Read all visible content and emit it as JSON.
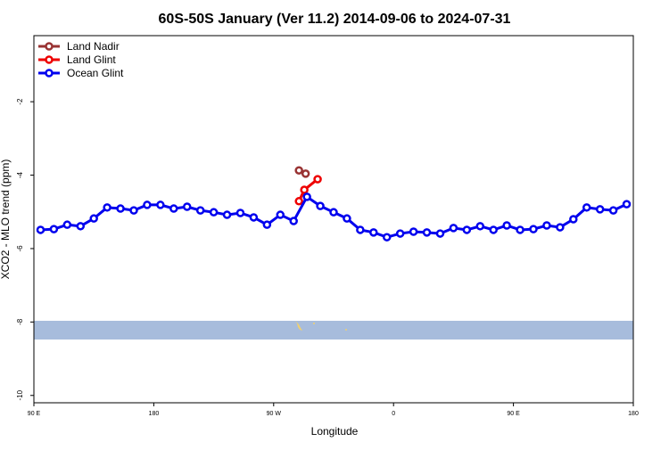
{
  "chart_data": {
    "type": "line",
    "title": "60S-50S January (Ver 11.2)   2014-09-06 to 2024-07-31",
    "x_label": "Longitude",
    "y_label": "XCO2 - MLO trend (ppm)",
    "xlim": [
      90,
      540
    ],
    "ylim": [
      -10.2,
      -0.2
    ],
    "xticks": [
      {
        "value": 90,
        "label": "90 E"
      },
      180,
      {
        "value": 270,
        "label": "90 W"
      },
      {
        "value": 360,
        "label": "0"
      },
      {
        "value": 450,
        "label": "90 E"
      },
      {
        "value": 540,
        "label": "180"
      }
    ],
    "yticks": [
      -10,
      -8,
      -6,
      -4,
      -2
    ],
    "legend": "top-left",
    "series": [
      {
        "name": "Land Nadir",
        "color": "#993333",
        "x": [
          289,
          294
        ],
        "values": [
          -3.87,
          -3.96
        ]
      },
      {
        "name": "Land Glint",
        "color": "#ee0000",
        "x": [
          289,
          293,
          303
        ],
        "values": [
          -4.71,
          -4.4,
          -4.11
        ]
      },
      {
        "name": "Ocean Glint",
        "color": "#0000ee",
        "x": [
          95,
          105,
          115,
          125,
          135,
          145,
          155,
          165,
          175,
          185,
          195,
          205,
          215,
          225,
          235,
          245,
          255,
          265,
          275,
          285,
          295,
          305,
          315,
          325,
          335,
          345,
          355,
          365,
          375,
          385,
          395,
          405,
          415,
          425,
          435,
          445,
          455,
          465,
          475,
          485,
          495,
          505,
          515,
          525,
          535
        ],
        "values": [
          -5.49,
          -5.47,
          -5.35,
          -5.39,
          -5.18,
          -4.88,
          -4.91,
          -4.96,
          -4.81,
          -4.81,
          -4.91,
          -4.86,
          -4.96,
          -5.01,
          -5.08,
          -5.03,
          -5.15,
          -5.35,
          -5.08,
          -5.25,
          -4.59,
          -4.84,
          -5.01,
          -5.18,
          -5.49,
          -5.56,
          -5.69,
          -5.59,
          -5.54,
          -5.56,
          -5.59,
          -5.44,
          -5.49,
          -5.39,
          -5.49,
          -5.37,
          -5.49,
          -5.47,
          -5.37,
          -5.42,
          -5.2,
          -4.88,
          -4.93,
          -4.96,
          -4.79
        ]
      }
    ]
  }
}
